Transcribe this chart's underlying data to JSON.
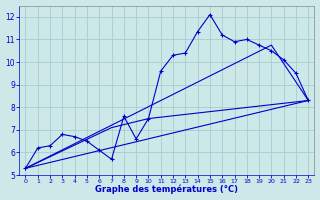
{
  "title": "Graphe des températures (°C)",
  "bg_color": "#cce8e8",
  "grid_color": "#aacccc",
  "line_color": "#0000cc",
  "xlim": [
    -0.5,
    23.5
  ],
  "ylim": [
    5,
    12.5
  ],
  "xticks": [
    0,
    1,
    2,
    3,
    4,
    5,
    6,
    7,
    8,
    9,
    10,
    11,
    12,
    13,
    14,
    15,
    16,
    17,
    18,
    19,
    20,
    21,
    22,
    23
  ],
  "yticks": [
    5,
    6,
    7,
    8,
    9,
    10,
    11,
    12
  ],
  "curve_main_x": [
    0,
    1,
    2,
    3,
    4,
    5,
    6,
    7,
    8,
    9,
    10,
    11,
    12,
    13,
    14,
    15,
    16,
    17,
    18,
    19,
    20,
    21,
    22,
    23
  ],
  "curve_main_y": [
    5.3,
    6.2,
    6.3,
    6.8,
    6.7,
    6.5,
    6.1,
    5.7,
    7.6,
    6.6,
    7.5,
    9.6,
    10.3,
    10.4,
    11.35,
    12.1,
    11.2,
    10.9,
    11.0,
    10.75,
    10.5,
    10.1,
    9.5,
    8.3
  ],
  "line1_x": [
    0,
    23
  ],
  "line1_y": [
    5.3,
    8.3
  ],
  "line2_x": [
    0,
    7,
    10,
    23
  ],
  "line2_y": [
    5.3,
    7.1,
    7.5,
    8.3
  ],
  "line3_x": [
    0,
    20,
    23
  ],
  "line3_y": [
    5.3,
    10.75,
    8.3
  ]
}
